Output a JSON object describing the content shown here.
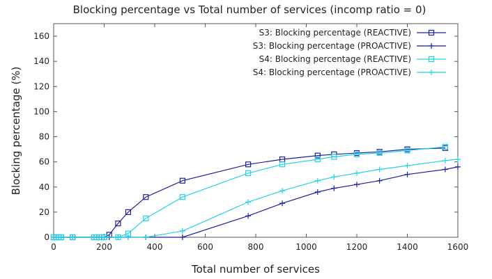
{
  "chart_data": {
    "type": "line",
    "title": "Blocking percentage vs Total number of services (incomp ratio = 0)",
    "xlabel": "Total number of services",
    "ylabel": "Blocking percentage (%)",
    "xlim": [
      0,
      1600
    ],
    "ylim": [
      0,
      170
    ],
    "xticks": [
      0,
      200,
      400,
      600,
      800,
      1000,
      1200,
      1400,
      1600
    ],
    "yticks": [
      0,
      20,
      40,
      60,
      80,
      100,
      120,
      140,
      160
    ],
    "grid": false,
    "legend_position": "top-right",
    "series": [
      {
        "name": "S3: Blocking percentage (REACTIVE)",
        "color": "#1f1f9e",
        "marker": "square",
        "x": [
          0,
          10,
          20,
          30,
          75,
          160,
          180,
          200,
          220,
          255,
          295,
          365,
          510,
          770,
          905,
          1045,
          1110,
          1200,
          1290,
          1400,
          1550
        ],
        "y": [
          0,
          0,
          0,
          0,
          0,
          0,
          0,
          0,
          2,
          11,
          20,
          32,
          45,
          58,
          62,
          65,
          66,
          67,
          68,
          70,
          71
        ]
      },
      {
        "name": "S3: Blocking percentage (PROACTIVE)",
        "color": "#1f1f9e",
        "marker": "plus",
        "x": [
          0,
          10,
          20,
          30,
          75,
          160,
          180,
          200,
          220,
          255,
          295,
          365,
          510,
          770,
          905,
          1045,
          1110,
          1200,
          1290,
          1400,
          1550,
          1600
        ],
        "y": [
          0,
          0,
          0,
          0,
          0,
          0,
          0,
          0,
          0,
          0,
          0,
          0,
          0,
          17,
          27,
          36,
          39,
          42,
          45,
          50,
          54,
          56
        ]
      },
      {
        "name": "S4: Blocking percentage (REACTIVE)",
        "color": "#22d3e6",
        "marker": "square",
        "x": [
          0,
          10,
          20,
          30,
          75,
          160,
          180,
          200,
          255,
          295,
          365,
          510,
          770,
          905,
          1045,
          1110,
          1200,
          1290,
          1400,
          1550
        ],
        "y": [
          0,
          0,
          0,
          0,
          0,
          0,
          0,
          0,
          0,
          3,
          15,
          32,
          51,
          58,
          62,
          64,
          66,
          67,
          69,
          72
        ]
      },
      {
        "name": "S4: Blocking percentage (PROACTIVE)",
        "color": "#22d3e6",
        "marker": "plus",
        "x": [
          0,
          10,
          20,
          30,
          75,
          160,
          180,
          200,
          255,
          295,
          365,
          510,
          770,
          905,
          1045,
          1110,
          1200,
          1290,
          1400,
          1550,
          1600
        ],
        "y": [
          0,
          0,
          0,
          0,
          0,
          0,
          0,
          0,
          0,
          0,
          0,
          5,
          28,
          37,
          45,
          48,
          51,
          54,
          57,
          61,
          62
        ]
      }
    ]
  }
}
